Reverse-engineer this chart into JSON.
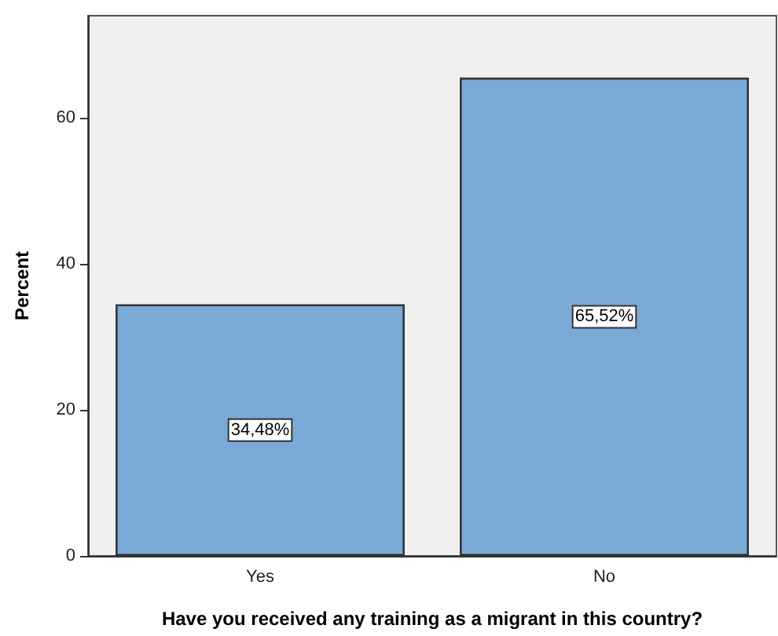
{
  "chart_data": {
    "type": "bar",
    "xlabel": "Have you received any training as a migrant in this country?",
    "ylabel": "Percent",
    "categories": [
      "Yes",
      "No"
    ],
    "values": [
      34.48,
      65.52
    ],
    "value_labels": [
      "34,48%",
      "65,52%"
    ],
    "color": "#7ba9d6",
    "ylim": [
      0,
      74
    ],
    "yticks": [
      0,
      20,
      40,
      60
    ],
    "grid": false
  }
}
